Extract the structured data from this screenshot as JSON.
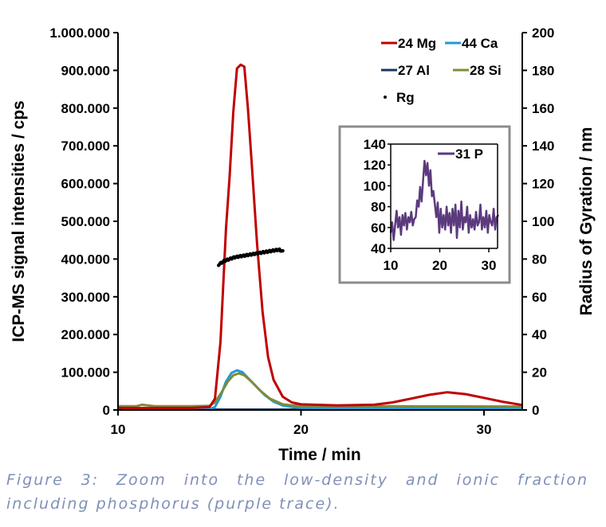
{
  "chart_data": {
    "type": "line",
    "xlabel": "Time / min",
    "ylabel": "ICP-MS signal intensities / cps",
    "y2label": "Radius of Gyration / nm",
    "xlim": [
      10,
      32.1
    ],
    "ylim": [
      0,
      1000000
    ],
    "y2lim": [
      0,
      200
    ],
    "xticks": [
      "10",
      "20",
      "30"
    ],
    "yticks": [
      "0",
      "100.000",
      "200.000",
      "300.000",
      "400.000",
      "500.000",
      "600.000",
      "700.000",
      "800.000",
      "900.000",
      "1.000.000"
    ],
    "y2ticks": [
      "0",
      "20",
      "40",
      "60",
      "80",
      "100",
      "120",
      "140",
      "160",
      "180",
      "200"
    ],
    "legend_position": "top-right",
    "series": [
      {
        "name": "24 Mg",
        "color": "#c00000",
        "axis": "left",
        "x": [
          10,
          14,
          15,
          15.3,
          15.6,
          15.9,
          16.1,
          16.3,
          16.5,
          16.7,
          16.9,
          17.1,
          17.3,
          17.6,
          17.9,
          18.2,
          18.5,
          19,
          19.5,
          20,
          22,
          24,
          25,
          26,
          27,
          28,
          29,
          30,
          31,
          32.1
        ],
        "y": [
          5000,
          5000,
          8000,
          30000,
          180000,
          480000,
          620000,
          790000,
          905000,
          915000,
          910000,
          800000,
          660000,
          440000,
          260000,
          140000,
          80000,
          35000,
          20000,
          15000,
          12000,
          14000,
          20000,
          30000,
          40000,
          47000,
          42000,
          32000,
          22000,
          13000
        ]
      },
      {
        "name": "44 Ca",
        "color": "#1f9ad6",
        "axis": "left",
        "x": [
          10,
          15,
          15.3,
          15.6,
          15.9,
          16.2,
          16.5,
          16.8,
          17.1,
          17.5,
          18,
          18.5,
          19,
          19.5,
          20,
          25,
          32.1
        ],
        "y": [
          2000,
          2000,
          8000,
          35000,
          75000,
          98000,
          105000,
          100000,
          85000,
          65000,
          40000,
          22000,
          12000,
          8000,
          6000,
          4000,
          3000
        ]
      },
      {
        "name": "27 Al",
        "color": "#17375e",
        "axis": "left",
        "x": [
          10,
          20,
          32.1
        ],
        "y": [
          1000,
          1000,
          1000
        ]
      },
      {
        "name": "28 Si",
        "color": "#7f8b3a",
        "axis": "left",
        "x": [
          10,
          11,
          11.3,
          12,
          14,
          15,
          15.3,
          15.7,
          16,
          16.3,
          16.6,
          16.9,
          17.3,
          17.8,
          18.3,
          19,
          19.5,
          20,
          25,
          32.1
        ],
        "y": [
          10000,
          10000,
          14000,
          10000,
          10000,
          11000,
          20000,
          50000,
          75000,
          92000,
          97000,
          92000,
          75000,
          50000,
          30000,
          15000,
          12000,
          11000,
          10000,
          9000
        ]
      },
      {
        "name": "Rg",
        "color": "#000000",
        "axis": "right",
        "marker": "dot",
        "x": [
          15.5,
          15.8,
          16.1,
          16.4,
          16.7,
          17.0,
          17.3,
          17.6,
          17.9,
          18.2,
          18.5,
          18.8,
          19.0
        ],
        "y": [
          77,
          79,
          80,
          81,
          81.5,
          82,
          82.5,
          83,
          83.5,
          84,
          84.5,
          85,
          84
        ]
      }
    ],
    "inset": {
      "xlim": [
        10,
        32
      ],
      "ylim": [
        40,
        140
      ],
      "xticks": [
        "10",
        "20",
        "30"
      ],
      "yticks": [
        "40",
        "60",
        "80",
        "100",
        "120",
        "140"
      ],
      "series": [
        {
          "name": "31 P",
          "color": "#5b3a7e",
          "x": [
            10,
            10.3,
            10.6,
            10.9,
            11.2,
            11.5,
            11.8,
            12.1,
            12.4,
            12.7,
            13.0,
            13.3,
            13.6,
            13.9,
            14.2,
            14.5,
            14.8,
            15.1,
            15.4,
            15.7,
            16.0,
            16.3,
            16.6,
            16.9,
            17.2,
            17.5,
            17.8,
            18.1,
            18.4,
            18.7,
            19.0,
            19.3,
            19.6,
            19.9,
            20.2,
            20.5,
            20.8,
            21.1,
            21.4,
            21.7,
            22.0,
            22.3,
            22.6,
            22.9,
            23.2,
            23.5,
            23.8,
            24.1,
            24.4,
            24.7,
            25.0,
            25.3,
            25.6,
            25.9,
            26.2,
            26.5,
            26.8,
            27.1,
            27.4,
            27.7,
            28.0,
            28.3,
            28.6,
            28.9,
            29.2,
            29.5,
            29.8,
            30.1,
            30.4,
            30.7,
            31.0,
            31.3,
            31.6,
            32.0
          ],
          "y": [
            55,
            65,
            48,
            62,
            76,
            60,
            70,
            53,
            72,
            62,
            74,
            58,
            70,
            65,
            75,
            62,
            68,
            70,
            86,
            80,
            99,
            85,
            105,
            124,
            110,
            122,
            100,
            115,
            90,
            95,
            82,
            70,
            84,
            55,
            78,
            60,
            72,
            58,
            80,
            62,
            74,
            55,
            78,
            62,
            82,
            50,
            76,
            60,
            85,
            58,
            70,
            65,
            80,
            55,
            72,
            60,
            68,
            58,
            75,
            62,
            65,
            82,
            58,
            70,
            60,
            76,
            55,
            72,
            65,
            62,
            78,
            58,
            70,
            72
          ]
        }
      ]
    }
  },
  "caption": "Figure 3: Zoom into the low-density and ionic fraction including phosphorus (purple trace)."
}
